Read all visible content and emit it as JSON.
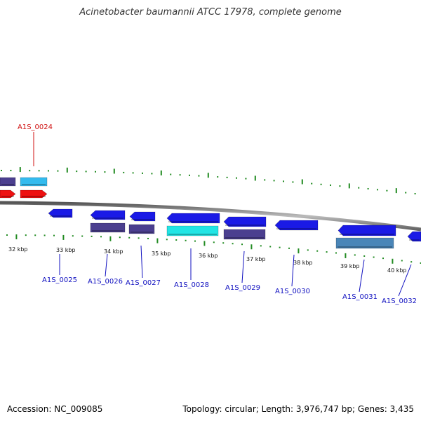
{
  "title": "Acinetobacter baumannii ATCC 17978, complete genome",
  "footer": {
    "accession": "Accession: NC_009085",
    "stats": "Topology: circular; Length: 3,976,747 bp; Genes: 3,435"
  },
  "colors": {
    "tick": "#228B22",
    "backbone": "#888888",
    "gene_blue": "#1a1ae6",
    "gene_slate": "#4b3f8f",
    "gene_cyan": "#22e5e5",
    "gene_sky": "#33bbee",
    "gene_red": "#ee1111",
    "gene_steel": "#4a86b8",
    "label_blue": "#1010c0",
    "label_red": "#d01010"
  },
  "kbp_labels": [
    "32 kbp",
    "33 kbp",
    "34 kbp",
    "35 kbp",
    "36 kbp",
    "37 kbp",
    "38 kbp",
    "39 kbp",
    "40 kbp"
  ],
  "gene_labels": [
    "A1S_0024",
    "A1S_0025",
    "A1S_0026",
    "A1S_0027",
    "A1S_0028",
    "A1S_0029",
    "A1S_0030",
    "A1S_0031",
    "A1S_0032"
  ]
}
